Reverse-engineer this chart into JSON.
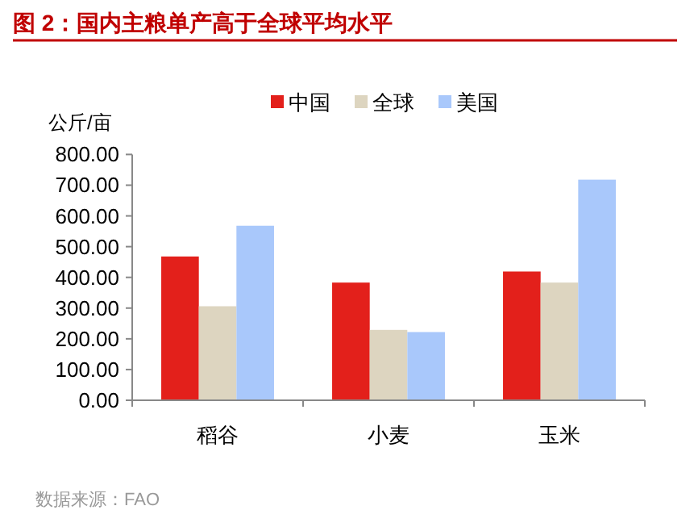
{
  "chart_data": {
    "type": "bar",
    "title": "图 2：国内主粮单产高于全球平均水平",
    "ylabel": "公斤/亩",
    "categories": [
      "稻谷",
      "小麦",
      "玉米"
    ],
    "series": [
      {
        "name": "中国",
        "color": "#e3201b",
        "values": [
          468,
          383,
          419
        ]
      },
      {
        "name": "全球",
        "color": "#ddd5c0",
        "values": [
          306,
          229,
          383
        ]
      },
      {
        "name": "美国",
        "color": "#a9c8fb",
        "values": [
          568,
          222,
          718
        ]
      }
    ],
    "ylim": [
      0,
      800
    ],
    "yticks": [
      {
        "value": 0,
        "label": "0.00"
      },
      {
        "value": 100,
        "label": "100.00"
      },
      {
        "value": 200,
        "label": "200.00"
      },
      {
        "value": 300,
        "label": "300.00"
      },
      {
        "value": 400,
        "label": "400.00"
      },
      {
        "value": 500,
        "label": "500.00"
      },
      {
        "value": 600,
        "label": "600.00"
      },
      {
        "value": 700,
        "label": "700.00"
      },
      {
        "value": 800,
        "label": "800.00"
      }
    ],
    "grid": false,
    "legend": "top",
    "annotations": [
      "数据来源：FAO"
    ]
  }
}
